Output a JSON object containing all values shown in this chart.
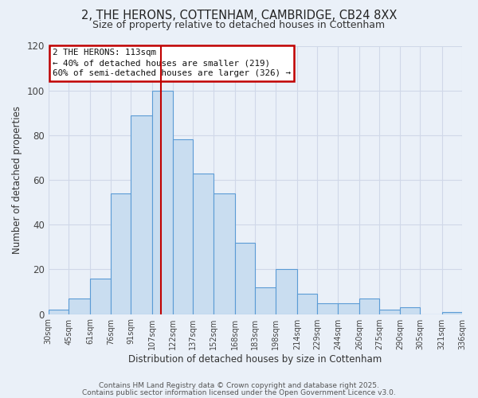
{
  "title": "2, THE HERONS, COTTENHAM, CAMBRIDGE, CB24 8XX",
  "subtitle": "Size of property relative to detached houses in Cottenham",
  "xlabel": "Distribution of detached houses by size in Cottenham",
  "ylabel": "Number of detached properties",
  "bin_labels": [
    "30sqm",
    "45sqm",
    "61sqm",
    "76sqm",
    "91sqm",
    "107sqm",
    "122sqm",
    "137sqm",
    "152sqm",
    "168sqm",
    "183sqm",
    "198sqm",
    "214sqm",
    "229sqm",
    "244sqm",
    "260sqm",
    "275sqm",
    "290sqm",
    "305sqm",
    "321sqm",
    "336sqm"
  ],
  "bar_values": [
    2,
    7,
    16,
    54,
    89,
    100,
    78,
    63,
    54,
    32,
    12,
    20,
    9,
    5,
    5,
    7,
    2,
    3,
    0,
    1
  ],
  "bar_color": "#c9ddf0",
  "bar_edge_color": "#5b9bd5",
  "grid_color": "#d0d8e8",
  "background_color": "#eaf0f8",
  "vline_x": 113,
  "vline_color": "#c00000",
  "annotation_title": "2 THE HERONS: 113sqm",
  "annotation_line1": "← 40% of detached houses are smaller (219)",
  "annotation_line2": "60% of semi-detached houses are larger (326) →",
  "annotation_box_color": "#ffffff",
  "annotation_box_edge": "#c00000",
  "footer1": "Contains HM Land Registry data © Crown copyright and database right 2025.",
  "footer2": "Contains public sector information licensed under the Open Government Licence v3.0.",
  "ylim": [
    0,
    120
  ],
  "yticks": [
    0,
    20,
    40,
    60,
    80,
    100,
    120
  ],
  "bin_edges": [
    30,
    45,
    61,
    76,
    91,
    107,
    122,
    137,
    152,
    168,
    183,
    198,
    214,
    229,
    244,
    260,
    275,
    290,
    305,
    321,
    336
  ]
}
